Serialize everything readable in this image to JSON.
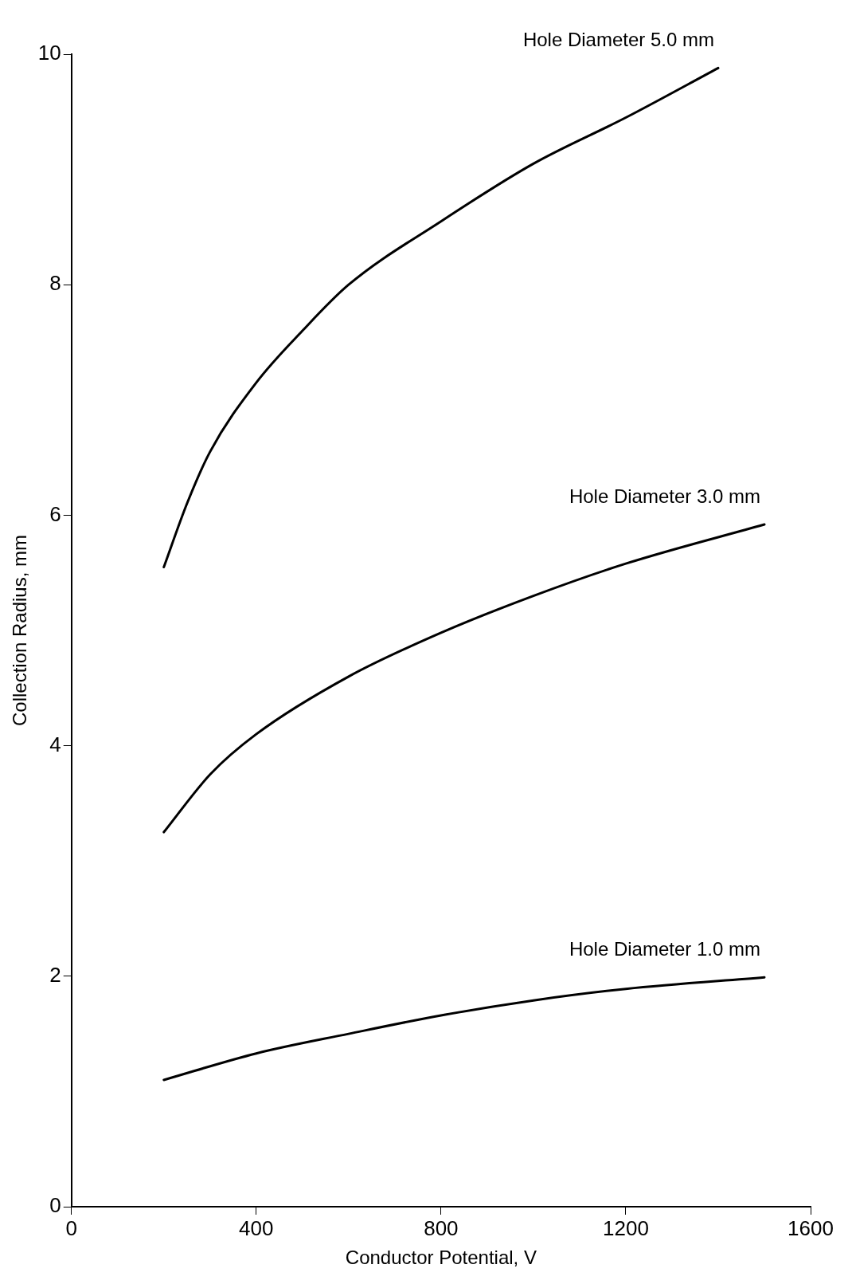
{
  "chart_data": {
    "type": "line",
    "xlabel": "Conductor Potential, V",
    "ylabel": "Collection Radius, mm",
    "xlim": [
      0,
      1600
    ],
    "xticks": [
      0,
      400,
      800,
      1200,
      1600
    ],
    "ylim": [
      0,
      10
    ],
    "yticks": [
      0,
      2,
      4,
      6,
      8,
      10
    ],
    "grid": false,
    "legend": false,
    "marker": "none",
    "line_style": "solid",
    "series": [
      {
        "name": "Hole Diameter 5.0 mm",
        "color": "#000000",
        "x": [
          200,
          250,
          300,
          400,
          500,
          600,
          800,
          1000,
          1200,
          1400
        ],
        "values": [
          5.55,
          6.1,
          6.55,
          7.15,
          7.6,
          8.0,
          8.55,
          9.05,
          9.45,
          9.88
        ]
      },
      {
        "name": "Hole Diameter 3.0 mm",
        "color": "#000000",
        "x": [
          200,
          300,
          400,
          600,
          800,
          1000,
          1200,
          1500
        ],
        "values": [
          3.25,
          3.75,
          4.1,
          4.6,
          4.98,
          5.3,
          5.58,
          5.92
        ]
      },
      {
        "name": "Hole Diameter 1.0 mm",
        "color": "#000000",
        "x": [
          200,
          400,
          600,
          800,
          1000,
          1200,
          1500
        ],
        "values": [
          1.1,
          1.33,
          1.5,
          1.66,
          1.79,
          1.89,
          1.99
        ]
      }
    ]
  }
}
